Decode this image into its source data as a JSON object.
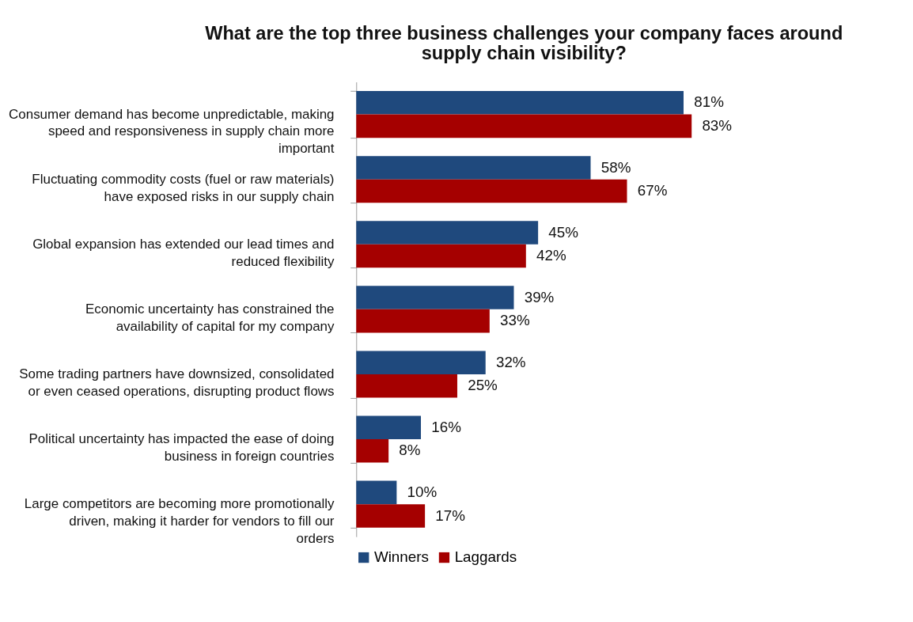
{
  "chart_data": {
    "type": "bar",
    "orientation": "horizontal",
    "title": "What are  the top three business challenges your company faces around supply chain visibility?",
    "categories": [
      "Consumer demand has become unpredictable, making speed and responsiveness in supply chain more important",
      "Fluctuating commodity costs (fuel or raw materials) have exposed risks in our supply chain",
      "Global expansion has extended our lead times and reduced flexibility",
      "Economic uncertainty has constrained the availability of capital for my company",
      "Some trading partners have downsized, consolidated or even ceased operations, disrupting product flows",
      "Political uncertainty has impacted the ease of doing business in foreign countries",
      "Large competitors are becoming more promotionally driven, making it harder for vendors to fill our orders"
    ],
    "series": [
      {
        "name": "Winners",
        "color": "#1f497d",
        "values": [
          81,
          58,
          45,
          39,
          32,
          16,
          10
        ],
        "value_labels": [
          "81%",
          "58%",
          "45%",
          "39%",
          "32%",
          "16%",
          "10%"
        ]
      },
      {
        "name": "Laggards",
        "color": "#a50000",
        "values": [
          83,
          67,
          42,
          33,
          25,
          8,
          17
        ],
        "value_labels": [
          "83%",
          "67%",
          "42%",
          "33%",
          "25%",
          "8%",
          "17%"
        ]
      }
    ],
    "legend": "bottom"
  }
}
